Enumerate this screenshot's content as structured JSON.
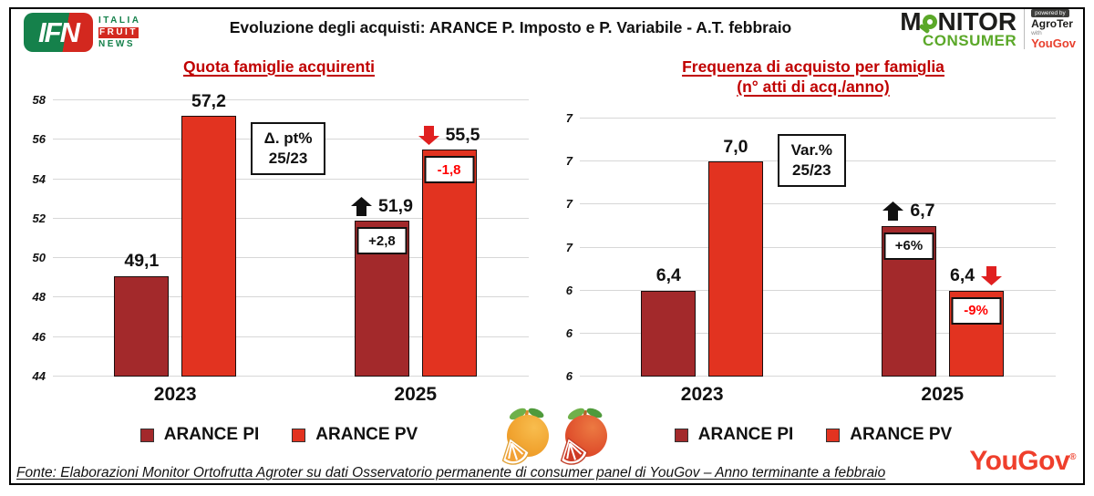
{
  "header": {
    "title": "Evoluzione degli acquisti: ARANCE P. Imposto e P. Variabile  - A.T. febbraio",
    "ifn_logo": {
      "abbr": "IFN",
      "line1": "ITALIA",
      "line2": "FRUIT",
      "line3": "NEWS"
    },
    "monitor_logo": {
      "monitor_m": "M",
      "monitor_rest": "NITOR",
      "consumer": "CONSUMER",
      "powered_by": "powered by",
      "agroter": "AgroTer",
      "with": "with",
      "yougov": "YouGov"
    }
  },
  "colors": {
    "pi": "#a3292b",
    "pv": "#e23320",
    "title_red": "#c00000",
    "negative_text": "#ff0000",
    "arrow_up": "#111111",
    "arrow_down": "#e02020",
    "gridline": "#d7d7d7",
    "logo_green": "#5ba829",
    "yougov_red": "#ef3f2c"
  },
  "chart_data": [
    {
      "type": "bar",
      "title": "Quota famiglie acquirenti",
      "subtitle": "",
      "categories": [
        "2023",
        "2025"
      ],
      "series": [
        {
          "name": "ARANCE PI",
          "color": "#a3292b",
          "values": [
            49.1,
            51.9
          ],
          "labels": [
            "49,1",
            "51,9"
          ]
        },
        {
          "name": "ARANCE PV",
          "color": "#e23320",
          "values": [
            57.2,
            55.5
          ],
          "labels": [
            "57,2",
            "55,5"
          ]
        }
      ],
      "ylim": [
        44,
        58
      ],
      "yticks": [
        {
          "value": 58,
          "label": "58"
        },
        {
          "value": 56,
          "label": "56"
        },
        {
          "value": 54,
          "label": "54"
        },
        {
          "value": 52,
          "label": "52"
        },
        {
          "value": 50,
          "label": "50"
        },
        {
          "value": 48,
          "label": "48"
        },
        {
          "value": 46,
          "label": "46"
        },
        {
          "value": 44,
          "label": "44"
        }
      ],
      "grid": true,
      "legend_position": "bottom",
      "note_box": {
        "line1": "Δ. pt%",
        "line2": "25/23",
        "left_pct": 41.5,
        "top_pct": 8
      },
      "changes": [
        {
          "cat": 1,
          "series": 0,
          "badge": "+2,8",
          "badge_color": "#111111",
          "arrow": "up",
          "arrow_side": "left"
        },
        {
          "cat": 1,
          "series": 1,
          "badge": "-1,8",
          "badge_color": "#ff0000",
          "arrow": "down",
          "arrow_side": "left"
        }
      ],
      "legend": [
        "ARANCE PI",
        "ARANCE PV"
      ]
    },
    {
      "type": "bar",
      "title": "Frequenza di acquisto per famiglia",
      "subtitle": "(n° atti di acq./anno)",
      "categories": [
        "2023",
        "2025"
      ],
      "series": [
        {
          "name": "ARANCE PI",
          "color": "#a3292b",
          "values": [
            6.4,
            6.7
          ],
          "labels": [
            "6,4",
            "6,7"
          ]
        },
        {
          "name": "ARANCE PV",
          "color": "#e23320",
          "values": [
            7.0,
            6.4
          ],
          "labels": [
            "7,0",
            "6,4"
          ]
        }
      ],
      "ylim": [
        6.0,
        7.2
      ],
      "yticks": [
        {
          "value": 7.2,
          "label": "7"
        },
        {
          "value": 7.0,
          "label": "7"
        },
        {
          "value": 6.8,
          "label": "7"
        },
        {
          "value": 6.6,
          "label": "7"
        },
        {
          "value": 6.4,
          "label": "6"
        },
        {
          "value": 6.2,
          "label": "6"
        },
        {
          "value": 6.0,
          "label": "6"
        }
      ],
      "grid": true,
      "legend_position": "bottom",
      "note_box": {
        "line1": "Var.%",
        "line2": "25/23",
        "left_pct": 41.5,
        "top_pct": 6
      },
      "changes": [
        {
          "cat": 1,
          "series": 0,
          "badge": "+6%",
          "badge_color": "#111111",
          "arrow": "up",
          "arrow_side": "left"
        },
        {
          "cat": 1,
          "series": 1,
          "badge": "-9%",
          "badge_color": "#ff0000",
          "arrow": "down",
          "arrow_side": "right"
        }
      ],
      "legend": [
        "ARANCE PI",
        "ARANCE PV"
      ]
    }
  ],
  "footer": {
    "source": "Fonte: Elaborazioni Monitor Ortofrutta Agroter su dati Osservatorio permanente di consumer panel di YouGov  – Anno terminante a febbraio",
    "yougov": "YouGov"
  }
}
